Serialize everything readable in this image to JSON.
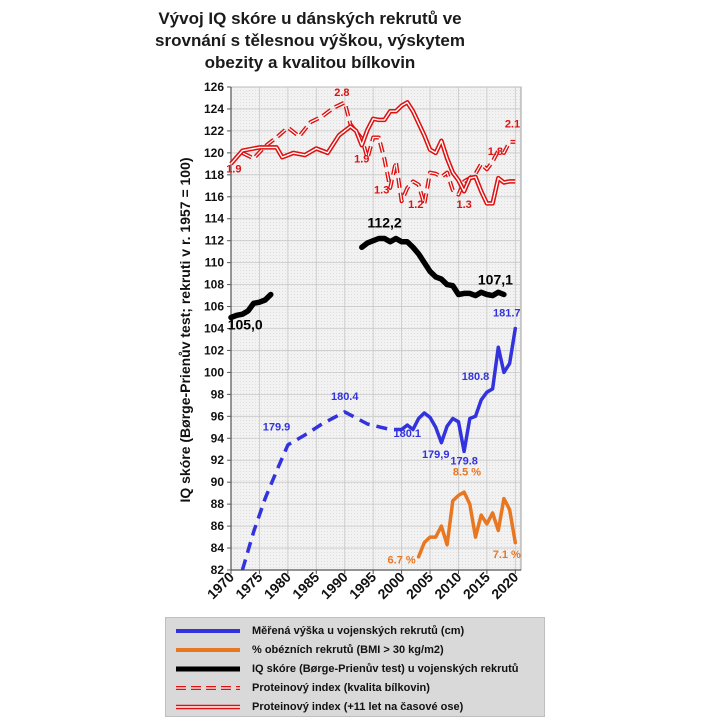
{
  "title": "Vývoj IQ skóre u dánských rekrutů ve srovnání s tělesnou výškou, výskytem obezity a kvalitou bílkovin",
  "chart_data": {
    "type": "line",
    "ylabel": "IQ skóre (Børge-Prienův test; rekruti v r. 1957 = 100)",
    "xlabel": "",
    "xlim": [
      1970,
      2021
    ],
    "ylim": [
      82,
      126
    ],
    "x_ticks": [
      "1970",
      "1975",
      "1980",
      "1985",
      "1990",
      "1995",
      "2000",
      "2005",
      "2010",
      "2015",
      "2020"
    ],
    "y_ticks": [
      "82",
      "84",
      "86",
      "88",
      "90",
      "92",
      "94",
      "96",
      "98",
      "100",
      "102",
      "104",
      "106",
      "108",
      "110",
      "112",
      "114",
      "116",
      "118",
      "120",
      "122",
      "124",
      "126"
    ],
    "grid": true,
    "legend_position": "bottom",
    "series": [
      {
        "key": "height",
        "name": "Měřená výška u vojenských rekrutů (cm)",
        "color": "#3333dd",
        "segments": [
          {
            "style": "dashed",
            "points": [
              [
                1972,
                82
              ],
              [
                1974,
                85.5
              ],
              [
                1976,
                88.5
              ],
              [
                1978,
                91
              ],
              [
                1980,
                93.4
              ],
              [
                1983,
                94.3
              ],
              [
                1986,
                95.3
              ],
              [
                1990,
                96.4
              ],
              [
                1994,
                95.3
              ],
              [
                1998,
                94.8
              ],
              [
                2000,
                94.8
              ]
            ]
          },
          {
            "style": "solid",
            "points": [
              [
                2000,
                94.8
              ],
              [
                2001,
                95.2
              ],
              [
                2002,
                94.8
              ],
              [
                2003,
                95.8
              ],
              [
                2004,
                96.3
              ],
              [
                2005,
                95.9
              ],
              [
                2006,
                95.0
              ],
              [
                2007,
                93.6
              ],
              [
                2008,
                95.1
              ],
              [
                2009,
                95.8
              ],
              [
                2010,
                95.5
              ],
              [
                2011,
                92.8
              ],
              [
                2012,
                95.8
              ],
              [
                2013,
                96.0
              ],
              [
                2014,
                97.5
              ],
              [
                2015,
                98.2
              ],
              [
                2016,
                98.5
              ],
              [
                2017,
                102.3
              ],
              [
                2018,
                100.0
              ],
              [
                2019,
                100.8
              ],
              [
                2020,
                104.0
              ]
            ]
          }
        ],
        "labels": [
          {
            "x": 1978,
            "y": 94.7,
            "text": "179.9"
          },
          {
            "x": 1990,
            "y": 97.5,
            "text": "180.4"
          },
          {
            "x": 2001,
            "y": 94.1,
            "text": "180.1"
          },
          {
            "x": 2006,
            "y": 92.2,
            "text": "179,9"
          },
          {
            "x": 2011,
            "y": 91.6,
            "text": "179.8"
          },
          {
            "x": 2013,
            "y": 99.3,
            "text": "180.8"
          },
          {
            "x": 2018.5,
            "y": 105.1,
            "text": "181.7"
          }
        ]
      },
      {
        "key": "obesity",
        "name": "% obézních rekrutů (BMI > 30 kg/m2)",
        "color": "#e87722",
        "segments": [
          {
            "style": "solid",
            "points": [
              [
                2003,
                83.2
              ],
              [
                2004,
                84.5
              ],
              [
                2005,
                85.0
              ],
              [
                2006,
                85.0
              ],
              [
                2007,
                86.0
              ],
              [
                2008,
                84.3
              ],
              [
                2009,
                88.3
              ],
              [
                2010,
                88.8
              ],
              [
                2011,
                89.1
              ],
              [
                2012,
                88.0
              ],
              [
                2013,
                85.0
              ],
              [
                2014,
                87.0
              ],
              [
                2015,
                86.2
              ],
              [
                2016,
                87.2
              ],
              [
                2017,
                85.6
              ],
              [
                2018,
                88.5
              ],
              [
                2019,
                87.5
              ],
              [
                2020,
                84.5
              ]
            ]
          }
        ],
        "labels": [
          {
            "x": 2000,
            "y": 82.6,
            "text": "6.7 %"
          },
          {
            "x": 2011.5,
            "y": 90.6,
            "text": "8.5 %"
          },
          {
            "x": 2018.5,
            "y": 83.1,
            "text": "7.1 %"
          }
        ]
      },
      {
        "key": "iq",
        "name": "IQ skóre (Børge-Prienův test) u vojenských rekrutů",
        "color": "#000000",
        "segments": [
          {
            "style": "solid",
            "points": [
              [
                1970,
                105.0
              ],
              [
                1971,
                105.2
              ],
              [
                1972,
                105.3
              ],
              [
                1973,
                105.6
              ],
              [
                1974,
                106.3
              ],
              [
                1975,
                106.4
              ],
              [
                1976,
                106.6
              ],
              [
                1977,
                107.1
              ]
            ]
          },
          {
            "style": "solid",
            "points": [
              [
                1993,
                111.4
              ],
              [
                1994,
                111.8
              ],
              [
                1995,
                112.0
              ],
              [
                1996,
                112.2
              ],
              [
                1997,
                112.2
              ],
              [
                1998,
                111.9
              ],
              [
                1999,
                112.2
              ],
              [
                2000,
                111.9
              ],
              [
                2001,
                111.9
              ],
              [
                2002,
                111.4
              ],
              [
                2003,
                110.8
              ],
              [
                2004,
                110.0
              ],
              [
                2005,
                109.2
              ],
              [
                2006,
                108.7
              ],
              [
                2007,
                108.5
              ],
              [
                2008,
                108.0
              ],
              [
                2009,
                107.9
              ],
              [
                2010,
                107.1
              ],
              [
                2011,
                107.2
              ],
              [
                2012,
                107.2
              ],
              [
                2013,
                107.0
              ],
              [
                2014,
                107.3
              ],
              [
                2015,
                107.1
              ],
              [
                2016,
                107.0
              ],
              [
                2017,
                107.3
              ],
              [
                2018,
                107.1
              ]
            ]
          }
        ],
        "labels": [
          {
            "x": 1972.5,
            "y": 103.9,
            "text": "105,0"
          },
          {
            "x": 1997,
            "y": 113.2,
            "text": "112,2"
          },
          {
            "x": 2016.5,
            "y": 108.0,
            "text": "107,1"
          }
        ]
      },
      {
        "key": "protein",
        "name": "Proteinový index (kvalita bílkovin)",
        "color": "#dd1111",
        "segments": [
          {
            "style": "dashed",
            "points": [
              [
                1972,
                120.0
              ],
              [
                1974,
                119.5
              ],
              [
                1976,
                120.6
              ],
              [
                1978,
                121.4
              ],
              [
                1980,
                122.3
              ],
              [
                1982,
                121.5
              ],
              [
                1984,
                122.8
              ],
              [
                1986,
                123.3
              ],
              [
                1988,
                124.1
              ],
              [
                1990,
                124.6
              ],
              [
                1991,
                122.6
              ],
              [
                1993,
                121.3
              ],
              [
                1994,
                119.5
              ],
              [
                1995,
                121.4
              ],
              [
                1996,
                121.4
              ],
              [
                1997,
                119.4
              ],
              [
                1998,
                116.8
              ],
              [
                1999,
                119.2
              ],
              [
                2000,
                115.6
              ],
              [
                2001,
                116.8
              ],
              [
                2002,
                117.4
              ],
              [
                2003,
                117.1
              ],
              [
                2004,
                115.3
              ],
              [
                2005,
                118.2
              ],
              [
                2006,
                118.1
              ],
              [
                2007,
                117.8
              ],
              [
                2008,
                118.2
              ],
              [
                2009,
                116.6
              ],
              [
                2010,
                116.2
              ],
              [
                2011,
                117.4
              ],
              [
                2012,
                117.7
              ],
              [
                2013,
                118.1
              ],
              [
                2014,
                119.0
              ],
              [
                2015,
                118.5
              ],
              [
                2016,
                119.2
              ],
              [
                2017,
                120.2
              ],
              [
                2018,
                120.0
              ],
              [
                2019,
                121.0
              ],
              [
                2020,
                121.0
              ]
            ]
          }
        ],
        "labels": [
          {
            "x": 1989.5,
            "y": 125.2,
            "text": "2.8"
          },
          {
            "x": 1993,
            "y": 119.1,
            "text": "1.9"
          },
          {
            "x": 1996.5,
            "y": 116.3,
            "text": "1.3"
          },
          {
            "x": 2002.5,
            "y": 115.0,
            "text": "1.2"
          },
          {
            "x": 2011,
            "y": 115.0,
            "text": "1.3"
          },
          {
            "x": 2016.5,
            "y": 119.8,
            "text": "1.8"
          },
          {
            "x": 2019.5,
            "y": 122.3,
            "text": "2.1"
          }
        ]
      },
      {
        "key": "protein_shift",
        "name": "Proteinový index (+11 let na časové ose)",
        "color": "#dd1111",
        "segments": [
          {
            "style": "double",
            "points": [
              [
                1970,
                119.0
              ],
              [
                1972,
                120.2
              ],
              [
                1975,
                120.5
              ],
              [
                1978,
                120.5
              ],
              [
                1979,
                119.6
              ],
              [
                1981,
                120.0
              ],
              [
                1983,
                119.8
              ],
              [
                1985,
                120.4
              ],
              [
                1987,
                120.0
              ],
              [
                1989,
                121.6
              ],
              [
                1991,
                122.4
              ],
              [
                1992,
                122.0
              ],
              [
                1993,
                120.7
              ],
              [
                1994,
                122.1
              ],
              [
                1995,
                123.1
              ],
              [
                1996,
                123.0
              ],
              [
                1997,
                123.0
              ],
              [
                1998,
                123.8
              ],
              [
                1999,
                123.8
              ],
              [
                2000,
                124.3
              ],
              [
                2001,
                124.6
              ],
              [
                2002,
                123.8
              ],
              [
                2003,
                122.7
              ],
              [
                2004,
                121.6
              ],
              [
                2005,
                120.3
              ],
              [
                2006,
                120.0
              ],
              [
                2007,
                121.1
              ],
              [
                2008,
                119.5
              ],
              [
                2009,
                118.2
              ],
              [
                2010,
                117.5
              ],
              [
                2011,
                116.5
              ],
              [
                2012,
                117.7
              ],
              [
                2013,
                117.8
              ],
              [
                2014,
                116.5
              ],
              [
                2015,
                115.4
              ],
              [
                2016,
                115.4
              ],
              [
                2017,
                117.7
              ],
              [
                2018,
                117.3
              ],
              [
                2019,
                117.4
              ],
              [
                2020,
                117.4
              ]
            ]
          }
        ],
        "labels": [
          {
            "x": 1970.5,
            "y": 118.2,
            "text": "1.9"
          }
        ]
      }
    ]
  },
  "legend": {
    "items": [
      {
        "label": "Měřená výška u vojenských rekrutů (cm)",
        "swatch": "solid-blue"
      },
      {
        "label": "% obézních rekrutů (BMI > 30 kg/m2)",
        "swatch": "solid-orange"
      },
      {
        "label": "IQ skóre (Børge-Prienův test) u vojenských rekrutů",
        "swatch": "solid-black"
      },
      {
        "label": "Proteinový index (kvalita bílkovin)",
        "swatch": "dashed-red"
      },
      {
        "label": "Proteinový index (+11 let na časové ose)",
        "swatch": "double-red"
      }
    ]
  }
}
